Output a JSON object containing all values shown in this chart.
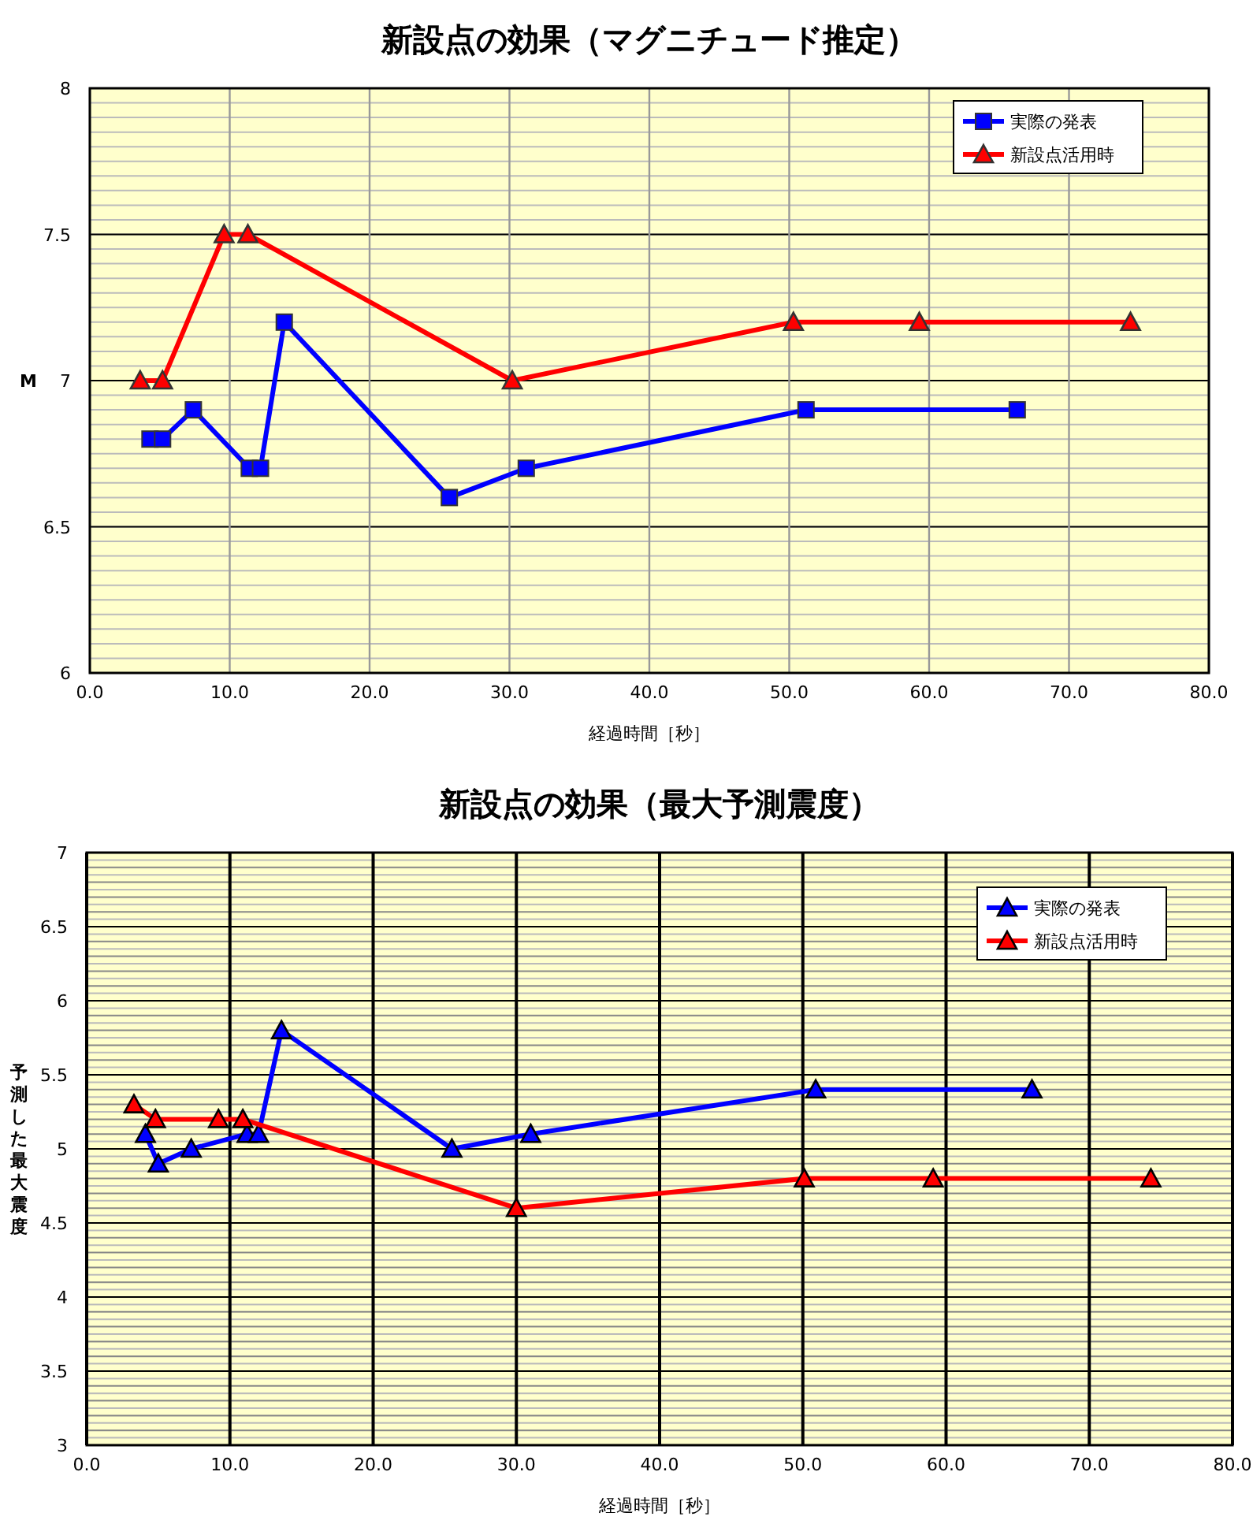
{
  "chart_data": [
    {
      "type": "line",
      "title": "新設点の効果（マグニチュード推定）",
      "xlabel": "経過時間［秒］",
      "ylabel": "M",
      "xlim": [
        0,
        80
      ],
      "ylim": [
        6,
        8
      ],
      "xticks": [
        {
          "value": 0,
          "label": "0.0"
        },
        {
          "value": 10,
          "label": "10.0"
        },
        {
          "value": 20,
          "label": "20.0"
        },
        {
          "value": 30,
          "label": "30.0"
        },
        {
          "value": 40,
          "label": "40.0"
        },
        {
          "value": 50,
          "label": "50.0"
        },
        {
          "value": 60,
          "label": "60.0"
        },
        {
          "value": 70,
          "label": "70.0"
        },
        {
          "value": 80,
          "label": "80.0"
        }
      ],
      "yticks": [
        6,
        6.5,
        7,
        7.5,
        8
      ],
      "grid": true,
      "legend": "top right",
      "series": [
        {
          "name": "実際の発表",
          "color": "#0000ff",
          "marker": "square",
          "x": [
            4.3,
            5.2,
            7.4,
            11.4,
            12.2,
            13.9,
            25.7,
            31.2,
            51.2,
            66.3
          ],
          "values": [
            6.8,
            6.8,
            6.9,
            6.7,
            6.7,
            7.2,
            6.6,
            6.7,
            6.9,
            6.9
          ]
        },
        {
          "name": "新設点活用時",
          "color": "#ff0000",
          "marker": "triangle",
          "x": [
            3.6,
            5.2,
            9.6,
            11.3,
            30.2,
            50.3,
            59.3,
            74.4
          ],
          "values": [
            7.0,
            7.0,
            7.5,
            7.5,
            7.0,
            7.2,
            7.2,
            7.2
          ]
        }
      ]
    },
    {
      "type": "line",
      "title": "新設点の効果（最大予測震度）",
      "xlabel": "経過時間［秒］",
      "ylabel": "予測した最大震度",
      "xlim": [
        0,
        80
      ],
      "ylim": [
        3,
        7
      ],
      "xticks": [
        {
          "value": 0,
          "label": "0.0"
        },
        {
          "value": 10,
          "label": "10.0"
        },
        {
          "value": 20,
          "label": "20.0"
        },
        {
          "value": 30,
          "label": "30.0"
        },
        {
          "value": 40,
          "label": "40.0"
        },
        {
          "value": 50,
          "label": "50.0"
        },
        {
          "value": 60,
          "label": "60.0"
        },
        {
          "value": 70,
          "label": "70.0"
        },
        {
          "value": 80,
          "label": "80.0"
        }
      ],
      "yticks": [
        3,
        3.5,
        4,
        4.5,
        5,
        5.5,
        6,
        6.5,
        7
      ],
      "grid": true,
      "legend": "top right",
      "series": [
        {
          "name": "実際の発表",
          "color": "#0000ff",
          "marker": "triangle",
          "x": [
            4.1,
            5.0,
            7.3,
            11.2,
            12.0,
            13.6,
            25.5,
            31.0,
            50.9,
            66.0
          ],
          "values": [
            5.1,
            4.9,
            5.0,
            5.1,
            5.1,
            5.8,
            5.0,
            5.1,
            5.4,
            5.4
          ]
        },
        {
          "name": "新設点活用時",
          "color": "#ff0000",
          "marker": "triangle",
          "x": [
            3.3,
            4.8,
            9.2,
            10.9,
            30.0,
            50.1,
            59.1,
            74.3
          ],
          "values": [
            5.3,
            5.2,
            5.2,
            5.2,
            4.6,
            4.8,
            4.8,
            4.8
          ]
        }
      ]
    }
  ]
}
